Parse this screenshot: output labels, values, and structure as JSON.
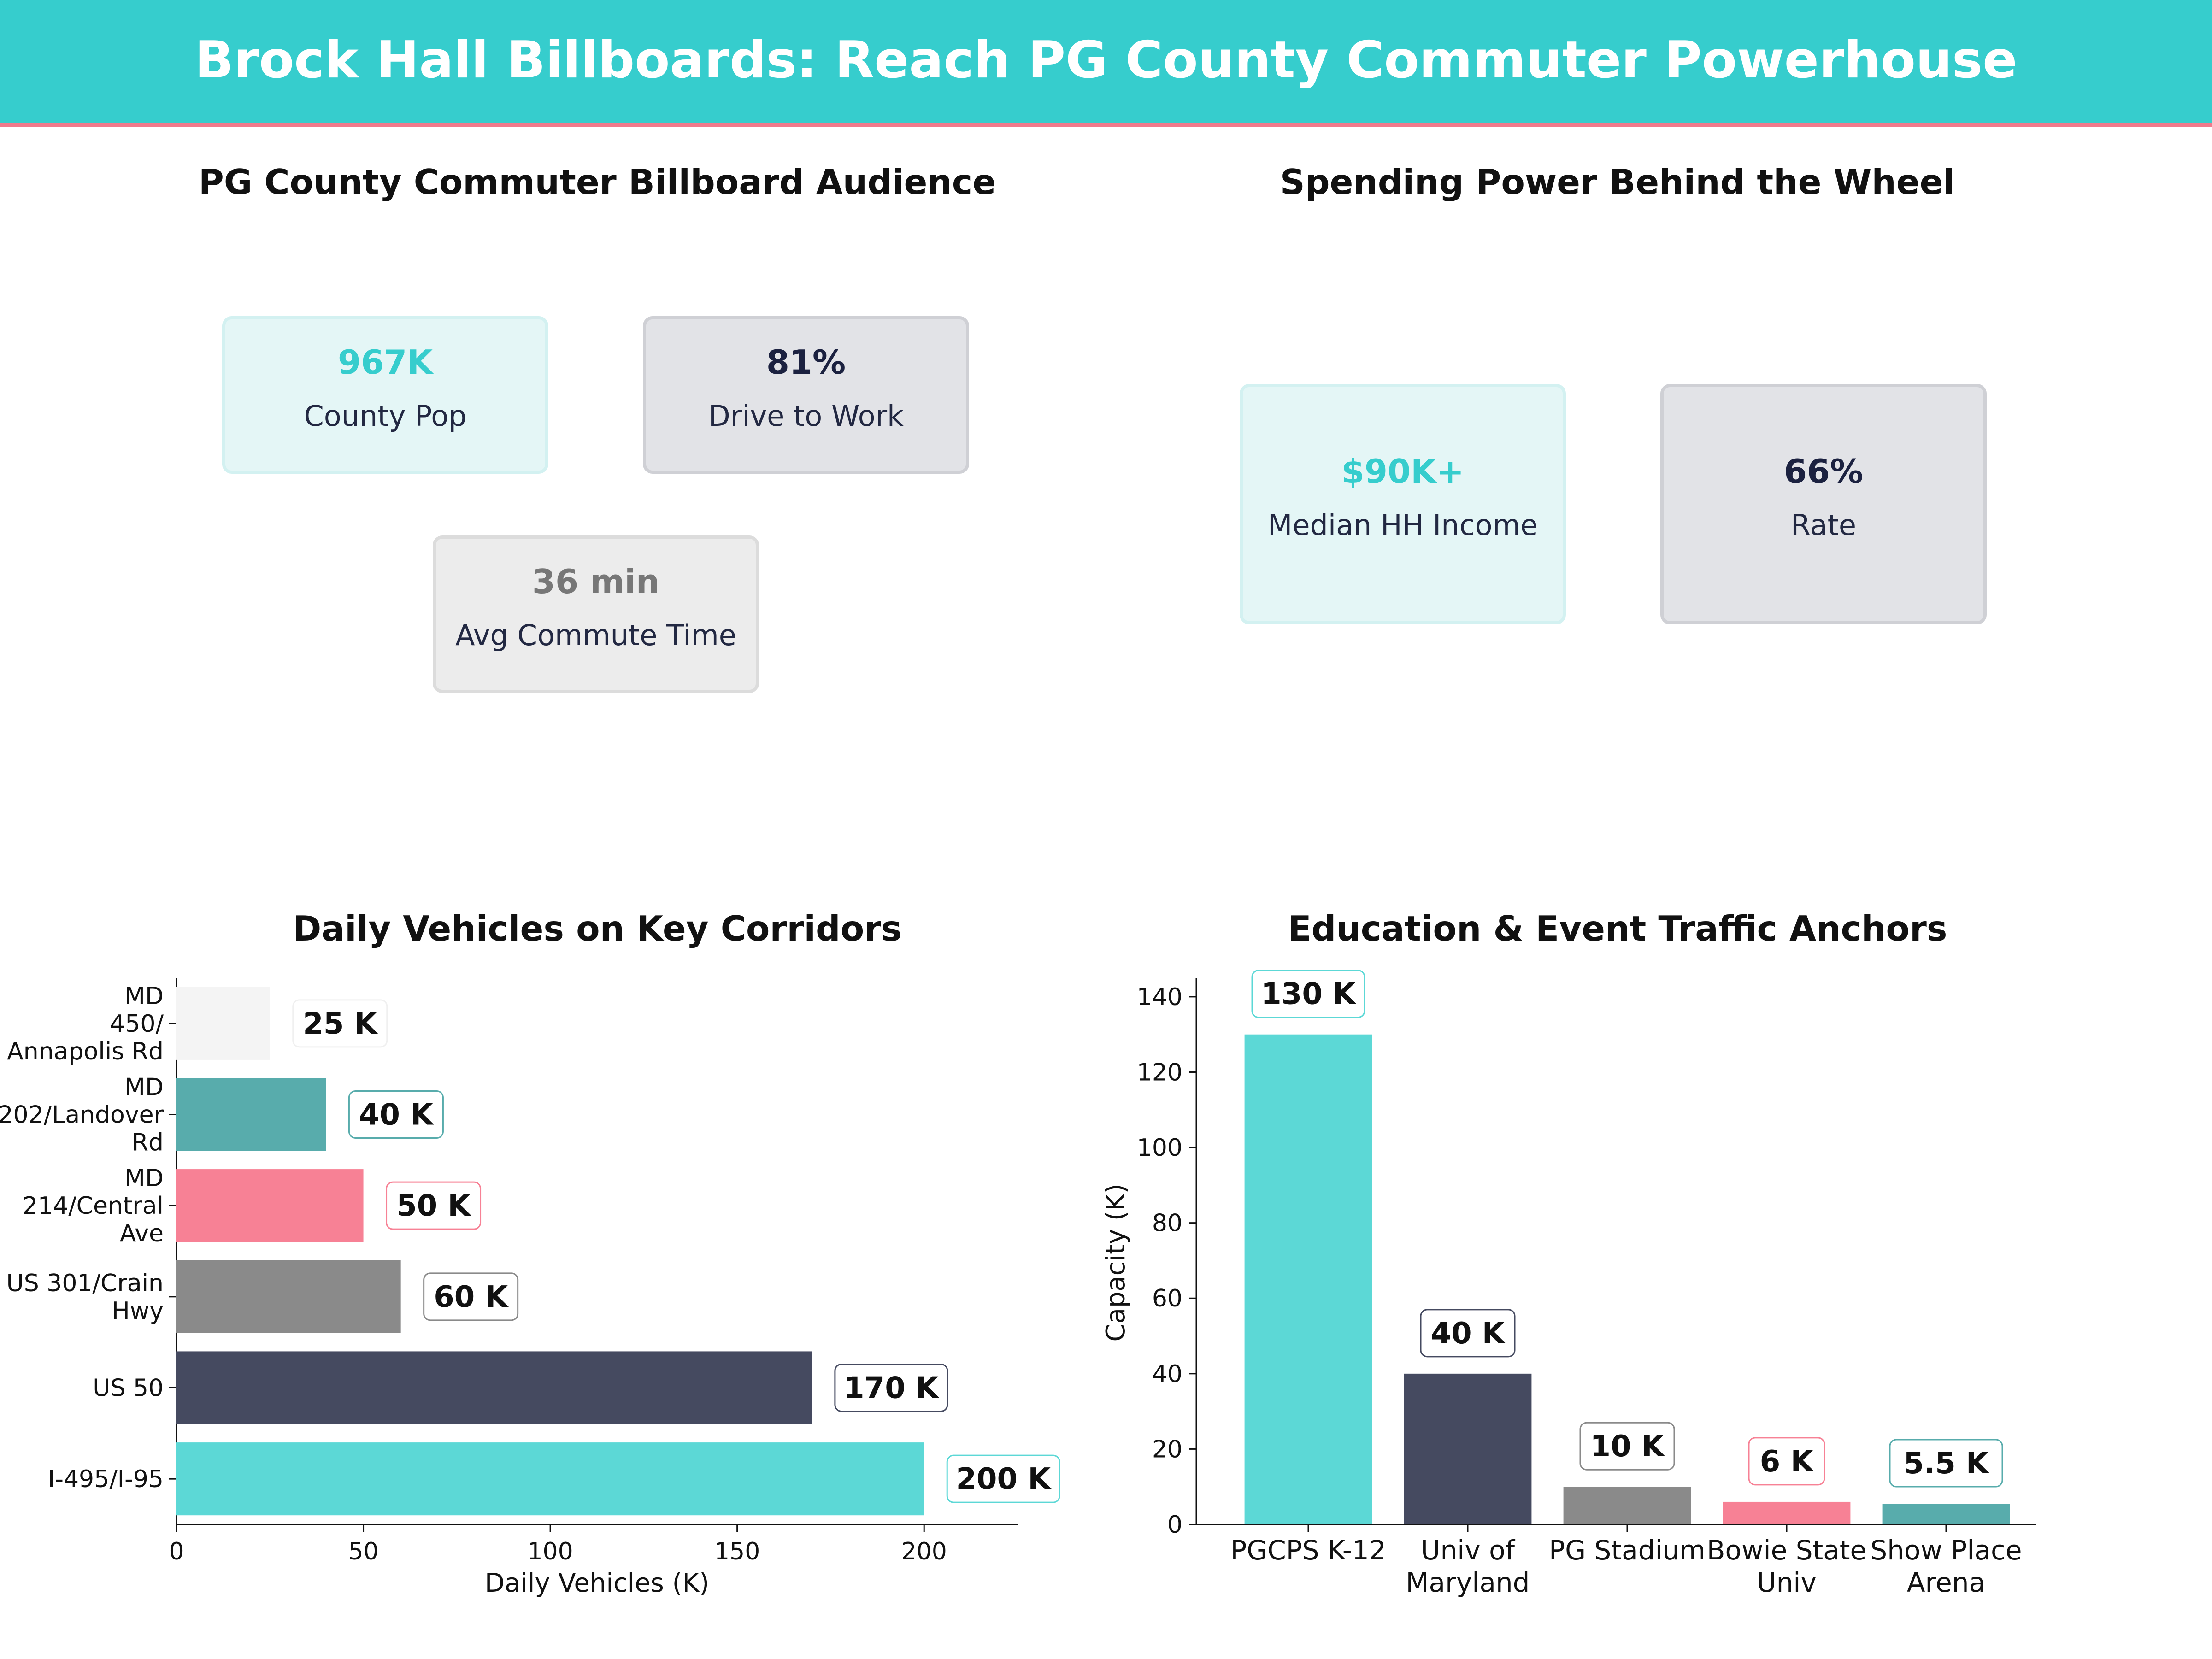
{
  "banner": {
    "title": "Brock Hall Billboards: Reach PG County Commuter Powerhouse"
  },
  "audience_panel": {
    "title": "PG County Commuter Billboard Audience",
    "kpis": [
      {
        "value": "967K",
        "label": "County Pop"
      },
      {
        "value": "81%",
        "label": "Drive to Work"
      },
      {
        "value": "36 min",
        "label": "Avg Commute Time"
      }
    ]
  },
  "spending_panel": {
    "title": "Spending Power Behind the Wheel",
    "kpis": [
      {
        "value": "$90K+",
        "label": "Median HH Income"
      },
      {
        "value": "66%",
        "label": "Rate"
      }
    ]
  },
  "colors": {
    "teal": "#36cdcd",
    "accent_pink": "#f07a8c",
    "navy": "#1b2140"
  },
  "chart_data": [
    {
      "type": "bar",
      "orientation": "horizontal",
      "title": "Daily Vehicles on Key Corridors",
      "xlabel": "Daily Vehicles (K)",
      "ylabel": "",
      "xlim": [
        0,
        225
      ],
      "xticks": [
        0,
        50,
        100,
        150,
        200
      ],
      "categories": [
        "I-495/I-95",
        "US 50",
        "US 301/Crain Hwy",
        "MD 214/Central Ave",
        "MD 202/Landover Rd",
        "MD 450/ Annapolis Rd"
      ],
      "category_lines": [
        [
          "I-495/I-95"
        ],
        [
          "US 50"
        ],
        [
          "US 301/Crain",
          "Hwy"
        ],
        [
          "MD",
          "214/Central",
          "Ave"
        ],
        [
          "MD",
          "202/Landover",
          "Rd"
        ],
        [
          "MD",
          "450/",
          "Annapolis Rd"
        ]
      ],
      "values": [
        200,
        170,
        60,
        50,
        40,
        25
      ],
      "data_labels": [
        "200 K",
        "170 K",
        "60 K",
        "50 K",
        "40 K",
        "25 K"
      ],
      "colors": [
        "#5cd8d6",
        "#454a60",
        "#8a8a8a",
        "#f78195",
        "#58acac",
        "#f4f4f4"
      ],
      "grid": false
    },
    {
      "type": "bar",
      "orientation": "vertical",
      "title": "Education & Event Traffic Anchors",
      "xlabel": "",
      "ylabel": "Capacity (K)",
      "ylim": [
        0,
        145
      ],
      "yticks": [
        0,
        20,
        40,
        60,
        80,
        100,
        120,
        140
      ],
      "categories": [
        "PGCPS K-12",
        "Univ of Maryland",
        "PG Stadium",
        "Bowie State Univ",
        "Show Place Arena"
      ],
      "category_lines": [
        [
          "PGCPS K-12"
        ],
        [
          "Univ of",
          "Maryland"
        ],
        [
          "PG Stadium"
        ],
        [
          "Bowie State",
          "Univ"
        ],
        [
          "Show Place",
          "Arena"
        ]
      ],
      "values": [
        130,
        40,
        10,
        6,
        5.5
      ],
      "data_labels": [
        "130 K",
        "40 K",
        "10 K",
        "6 K",
        "5.5 K"
      ],
      "colors": [
        "#5cd8d6",
        "#454a60",
        "#8a8a8a",
        "#f78195",
        "#58acac"
      ],
      "grid": false
    }
  ]
}
